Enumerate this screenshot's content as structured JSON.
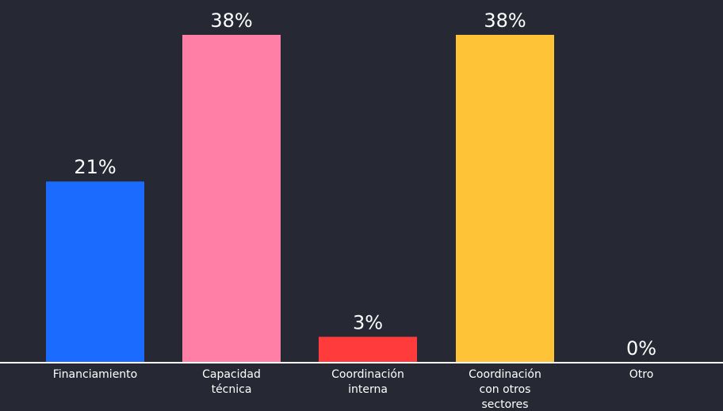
{
  "chart_data": {
    "type": "bar",
    "categories": [
      "Financiamiento",
      "Capacidad técnica",
      "Coordinación interna",
      "Coordinación con otros sectores",
      "Otro"
    ],
    "category_lines": [
      [
        "Financiamiento"
      ],
      [
        "Capacidad",
        "técnica"
      ],
      [
        "Coordinación",
        "interna"
      ],
      [
        "Coordinación",
        "con otros",
        "sectores"
      ],
      [
        "Otro"
      ]
    ],
    "values": [
      21,
      38,
      3,
      38,
      0
    ],
    "data_labels": [
      "21%",
      "38%",
      "3%",
      "38%",
      "0%"
    ],
    "colors": [
      "#1b6bff",
      "#ff7fa7",
      "#ff3b3b",
      "#ffc338",
      "#262934"
    ],
    "ylim": [
      0,
      40
    ],
    "grid": false,
    "legend": "none",
    "background": "#262934",
    "axis_color": "#ffffff",
    "text_color": "#ffffff"
  }
}
